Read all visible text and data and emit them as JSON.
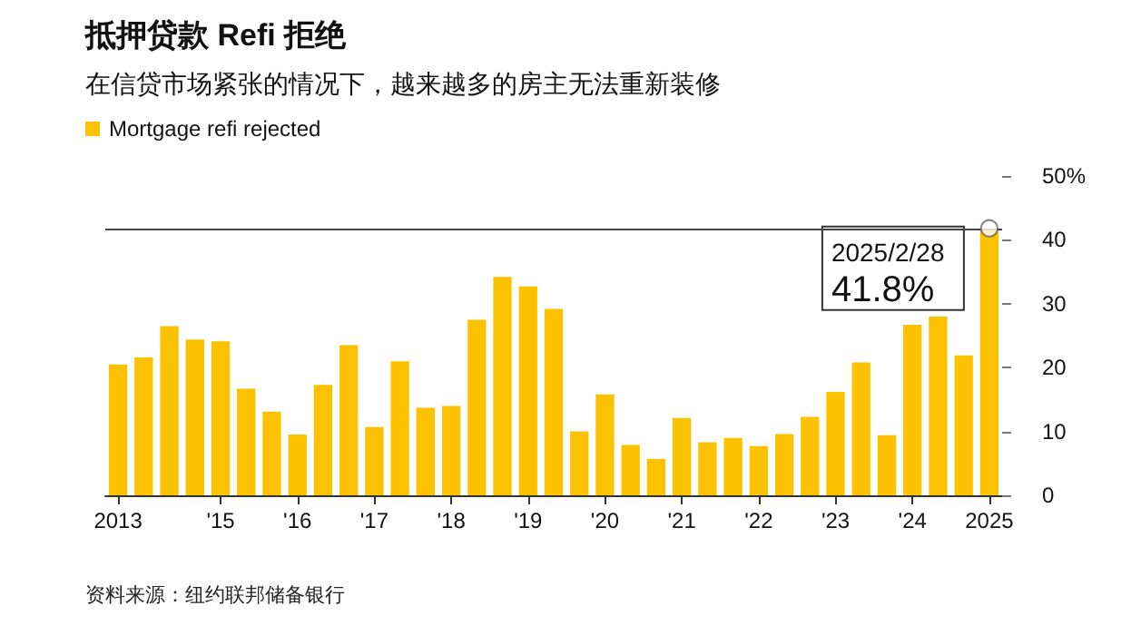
{
  "chart_data": {
    "type": "bar",
    "title": "抵押贷款 Refi 拒绝",
    "subtitle": "在信贷市场紧张的情况下，越来越多的房主无法重新装修",
    "categories": [
      "2013",
      null,
      null,
      null,
      "'15",
      null,
      null,
      "'16",
      null,
      null,
      "'17",
      null,
      null,
      "'18",
      null,
      null,
      "'19",
      null,
      null,
      "'20",
      null,
      null,
      "'21",
      null,
      null,
      "'22",
      null,
      null,
      "'23",
      null,
      null,
      "'24",
      null,
      null,
      "2025"
    ],
    "series": [
      {
        "name": "Mortgage refi rejected",
        "color": "#fcc200",
        "values": [
          20.5,
          21.6,
          26.5,
          24.4,
          24.1,
          16.7,
          13.1,
          9.5,
          17.3,
          23.5,
          10.7,
          21.0,
          13.7,
          14.0,
          27.5,
          34.2,
          32.7,
          29.2,
          10.0,
          15.8,
          7.9,
          5.7,
          12.1,
          8.3,
          9.0,
          7.7,
          9.6,
          12.3,
          16.2,
          20.8,
          9.4,
          26.7,
          28.0,
          21.9,
          41.8
        ]
      },
      {
        "type": "scatter",
        "color": "#ffffff",
        "values": [
          null,
          null,
          null,
          null,
          null,
          null,
          null,
          null,
          null,
          null,
          null,
          null,
          null,
          null,
          null,
          null,
          null,
          null,
          null,
          null,
          null,
          null,
          null,
          null,
          null,
          null,
          null,
          null,
          null,
          null,
          null,
          null,
          null,
          null,
          41.8
        ]
      }
    ],
    "ylim": [
      0,
      50
    ],
    "yticks": [
      0,
      10,
      20,
      30,
      40,
      {
        "value": 50,
        "label": "50%"
      }
    ],
    "ref_lines": [
      {
        "axis": "y",
        "value": 41.8,
        "color": "#444444"
      }
    ],
    "annotations": [
      {
        "text": "2025/2/28",
        "x": "2025",
        "y": 41.8
      },
      {
        "text": "41.8%",
        "x": "2025",
        "y": 41.8
      },
      "资料来源：纽约联邦储备银行"
    ],
    "legend": "top left",
    "marker": "circle",
    "grid": false
  }
}
